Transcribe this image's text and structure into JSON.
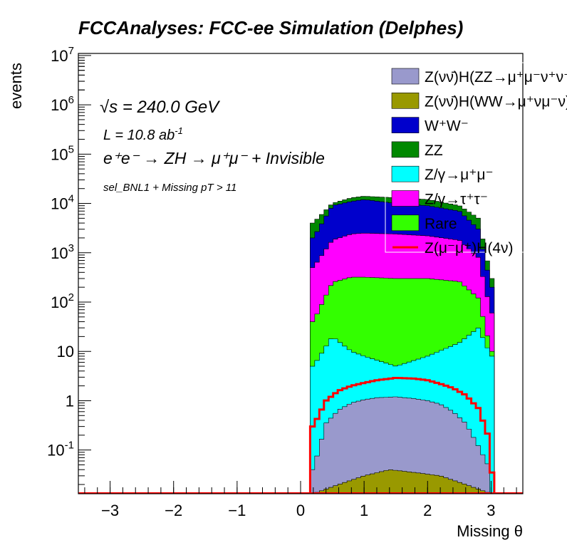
{
  "chart_data": {
    "type": "area",
    "title": "FCCAnalyses: FCC-ee Simulation (Delphes)",
    "xlabel": "Missing θ",
    "ylabel": "events",
    "xlim": [
      -3.5,
      3.5
    ],
    "ylim": [
      0.013,
      11000000
    ],
    "yscale": "log",
    "stacked": true,
    "x_ticks": [
      "−3",
      "−2",
      "−1",
      "0",
      "1",
      "2",
      "3"
    ],
    "y_ticks": [
      "10^-1",
      "1",
      "10",
      "10^2",
      "10^3",
      "10^4",
      "10^5",
      "10^6",
      "10^7"
    ],
    "annotations": {
      "sqrts": "√s = 240.0 GeV",
      "lumi": "L = 10.8 ab",
      "lumi_exp": "-1",
      "process": "e⁺e⁻ → ZH → μ⁺μ⁻ + Invisible",
      "selection": "sel_BNL1 + Missing pT > 11"
    },
    "legend_position": "top-right",
    "bin_edges": [
      0.15,
      3.05
    ],
    "series": [
      {
        "name": "Z(νν̄)H(ZZ→μ⁺μ⁻ν⁺ν⁻)",
        "color": "#9999cc",
        "total": [
          [
            0.2,
            0.04
          ],
          [
            0.4,
            0.35
          ],
          [
            0.6,
            0.65
          ],
          [
            0.8,
            0.9
          ],
          [
            1.0,
            1.05
          ],
          [
            1.2,
            1.15
          ],
          [
            1.5,
            1.2
          ],
          [
            1.8,
            1.1
          ],
          [
            2.0,
            1.0
          ],
          [
            2.2,
            0.85
          ],
          [
            2.4,
            0.6
          ],
          [
            2.6,
            0.35
          ],
          [
            2.8,
            0.12
          ],
          [
            2.95,
            0.05
          ],
          [
            3.0,
            0.013
          ]
        ]
      },
      {
        "name": "Z(νν̄)H(WW→μ⁺νμ⁻ν)",
        "color": "#999900",
        "total": [
          [
            0.2,
            0.013
          ],
          [
            0.6,
            0.02
          ],
          [
            1.0,
            0.03
          ],
          [
            1.4,
            0.04
          ],
          [
            1.8,
            0.035
          ],
          [
            2.2,
            0.03
          ],
          [
            2.6,
            0.02
          ],
          [
            3.0,
            0.013
          ]
        ]
      },
      {
        "name": "W⁺W⁻",
        "color": "#0000cc",
        "total": [
          [
            0.2,
            2000
          ],
          [
            0.5,
            9000
          ],
          [
            0.8,
            11000
          ],
          [
            1.0,
            12000
          ],
          [
            1.5,
            10000
          ],
          [
            2.0,
            9000
          ],
          [
            2.5,
            7000
          ],
          [
            2.8,
            3000
          ],
          [
            3.0,
            200
          ]
        ]
      },
      {
        "name": "ZZ",
        "color": "#008800",
        "total": [
          [
            0.2,
            4000
          ],
          [
            0.5,
            10000
          ],
          [
            0.8,
            13000
          ],
          [
            1.0,
            14000
          ],
          [
            1.5,
            13000
          ],
          [
            2.0,
            12000
          ],
          [
            2.5,
            9000
          ],
          [
            2.8,
            5000
          ],
          [
            3.0,
            300
          ]
        ]
      },
      {
        "name": "Z/γ→μ⁺μ⁻",
        "color": "#00ffff",
        "total": [
          [
            0.2,
            5
          ],
          [
            0.5,
            20
          ],
          [
            0.8,
            10
          ],
          [
            1.0,
            8
          ],
          [
            1.5,
            5
          ],
          [
            2.0,
            8
          ],
          [
            2.5,
            15
          ],
          [
            2.8,
            30
          ],
          [
            3.0,
            8
          ]
        ]
      },
      {
        "name": "Z/γ→τ⁺τ⁻",
        "color": "#ff00ff",
        "total": [
          [
            0.2,
            500
          ],
          [
            0.5,
            1800
          ],
          [
            0.8,
            2400
          ],
          [
            1.0,
            2500
          ],
          [
            1.5,
            2400
          ],
          [
            2.0,
            2200
          ],
          [
            2.5,
            1800
          ],
          [
            2.8,
            800
          ],
          [
            3.0,
            60
          ]
        ]
      },
      {
        "name": "Rare",
        "color": "#33ff00",
        "total": [
          [
            0.2,
            40
          ],
          [
            0.5,
            250
          ],
          [
            0.8,
            320
          ],
          [
            1.0,
            320
          ],
          [
            1.5,
            300
          ],
          [
            2.0,
            300
          ],
          [
            2.5,
            260
          ],
          [
            2.8,
            120
          ],
          [
            3.0,
            10
          ]
        ]
      },
      {
        "name": "Z(μ⁻μ⁺)H(4ν)",
        "color": "#ff0000",
        "style": "line",
        "total": [
          [
            0.2,
            0.3
          ],
          [
            0.4,
            1.0
          ],
          [
            0.6,
            1.6
          ],
          [
            0.8,
            2.0
          ],
          [
            1.0,
            2.3
          ],
          [
            1.2,
            2.6
          ],
          [
            1.5,
            2.9
          ],
          [
            1.8,
            2.8
          ],
          [
            2.0,
            2.6
          ],
          [
            2.2,
            2.2
          ],
          [
            2.4,
            1.8
          ],
          [
            2.6,
            1.3
          ],
          [
            2.8,
            0.7
          ],
          [
            2.95,
            0.2
          ],
          [
            3.05,
            0.013
          ]
        ]
      }
    ]
  }
}
